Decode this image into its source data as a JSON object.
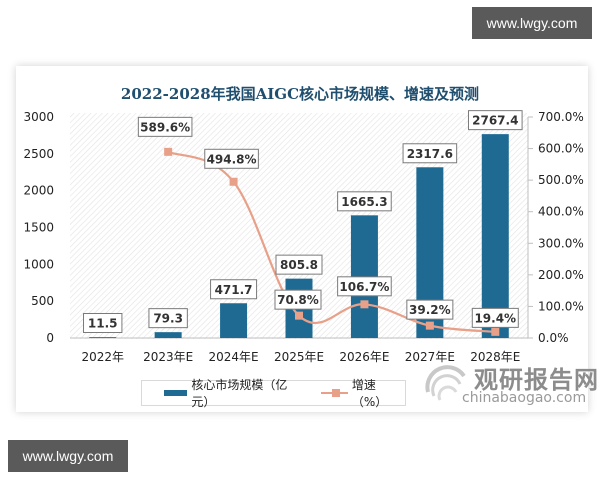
{
  "watermarks": {
    "top": "www.lwgy.com",
    "bottom": "www.lwgy.com"
  },
  "brand": {
    "name_cn": "观研报告网",
    "domain": "chinabaogao.com"
  },
  "chart_data": {
    "type": "bar",
    "title": "2022-2028年我国AIGC核心市场规模、增速及预测",
    "categories": [
      "2022年",
      "2023年E",
      "2024年E",
      "2025年E",
      "2026年E",
      "2027年E",
      "2028年E"
    ],
    "series": [
      {
        "name": "核心市场规模（亿元）",
        "type": "bar",
        "axis": "left",
        "color": "#1e6a93",
        "values": [
          11.5,
          79.3,
          471.7,
          805.8,
          1665.3,
          2317.6,
          2767.4
        ],
        "labels": [
          "11.5",
          "79.3",
          "471.7",
          "805.8",
          "1665.3",
          "2317.6",
          "2767.4"
        ]
      },
      {
        "name": "增速（%）",
        "type": "line",
        "axis": "right",
        "color": "#e8a088",
        "values": [
          null,
          589.6,
          494.8,
          70.8,
          106.7,
          39.2,
          19.4
        ],
        "labels": [
          "",
          "589.6%",
          "494.8%",
          "70.8%",
          "106.7%",
          "39.2%",
          "19.4%"
        ]
      }
    ],
    "y_left": {
      "ticks": [
        "0",
        "500",
        "1000",
        "1500",
        "2000",
        "2500",
        "3000"
      ],
      "ylim": [
        0,
        3000
      ]
    },
    "y_right": {
      "ticks": [
        "0.0%",
        "100.0%",
        "200.0%",
        "300.0%",
        "400.0%",
        "500.0%",
        "600.0%",
        "700.0%"
      ],
      "ylim": [
        0,
        700
      ]
    },
    "xlabel": "",
    "ylabel": "",
    "grid": false,
    "legend_position": "bottom"
  }
}
